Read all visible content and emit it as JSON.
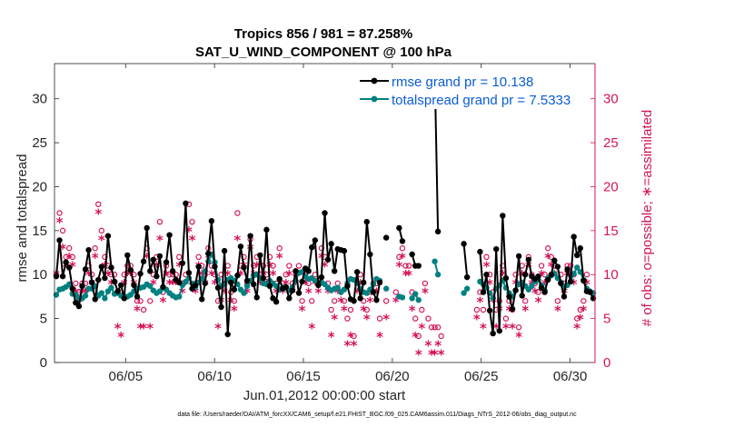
{
  "chart_data": {
    "type": "line",
    "title_line1": "Tropics 856 / 981 = 87.258%",
    "title_line2": "SAT_U_WIND_COMPONENT @ 100 hPa",
    "xlabel": "Jun.01,2012 00:00:00 start",
    "ylabel_left": "rmse and totalspread",
    "ylabel_right": "# of obs: o=possible; ∗=assimilated",
    "footnote": "data file: /Users/raeder/DAI/ATM_forcXX/CAM6_setup/f.e21.FHIST_BGC.f09_025.CAM6assim.011/Diags_NTrS_2012-06/obs_diag_output.nc",
    "xlim": [
      1.0,
      31.4
    ],
    "ylim_left": [
      0,
      34
    ],
    "ylim_right": [
      0,
      34
    ],
    "x_ticks": [
      {
        "value": 5,
        "label": "06/05"
      },
      {
        "value": 10,
        "label": "06/10"
      },
      {
        "value": 15,
        "label": "06/15"
      },
      {
        "value": 20,
        "label": "06/20"
      },
      {
        "value": 25,
        "label": "06/25"
      },
      {
        "value": 30,
        "label": "06/30"
      }
    ],
    "y_ticks_left": [
      "0",
      "5",
      "10",
      "15",
      "20",
      "25",
      "30"
    ],
    "y_ticks_right": [
      "0",
      "5",
      "10",
      "15",
      "20",
      "25",
      "30"
    ],
    "colors": {
      "rmse": "#000000",
      "spread": "#008080",
      "obs": "#d4145a",
      "legend_text": "#0a5cd6"
    },
    "series": [
      {
        "name": "rmse grand pr = 10.138",
        "values": [
          9.8,
          13.9,
          9.8,
          11.4,
          10.8,
          8.4,
          6.8,
          6.4,
          8.7,
          10.6,
          12.8,
          9.1,
          7.2,
          9.4,
          10.9,
          9.6,
          14.4,
          10.8,
          9.2,
          8.1,
          8.8,
          7.3,
          12.2,
          10.5,
          8.8,
          7.5,
          10.1,
          11.5,
          15.3,
          10.4,
          11.7,
          9.8,
          12.1,
          8.6,
          11.4,
          14.5,
          10.4,
          9.4,
          9.1,
          11.3,
          18.1,
          10.2,
          8.4,
          8.8,
          10.9,
          7.2,
          9.0,
          12.4,
          16.1,
          10.9,
          8.5,
          6.3,
          12.7,
          3.2,
          9.1,
          8.3,
          9.9,
          13.2,
          10.8,
          9.3,
          14.4,
          8.9,
          7.4,
          12.2,
          9.6,
          15.1,
          8.7,
          7.3,
          6.9,
          9.5,
          8.4,
          8.6,
          7.3,
          8.2,
          10.4,
          7.9,
          9.2,
          10.7,
          10.4,
          13.1,
          13.9,
          8.8,
          9.7,
          17.0,
          11.7,
          13.5,
          10.4,
          12.9,
          12.8,
          12.7,
          8.7,
          7.2,
          7.0,
          10.3,
          7.3,
          9.1,
          16.0,
          12.3,
          8.0,
          7.1,
          9.1,
          null,
          14.2,
          null,
          null,
          null,
          15.3,
          13.8,
          null,
          null,
          12.3,
          11.0,
          11.0,
          null,
          null,
          null,
          null,
          33.0,
          14.9,
          null,
          null,
          null,
          null,
          null,
          null,
          null,
          13.5,
          9.7,
          null,
          null,
          null,
          12.6,
          8.0,
          10.0,
          5.9,
          3.3,
          12.9,
          3.6,
          16.7,
          9.6,
          7.5,
          6.1,
          8.2,
          12.1,
          7.6,
          10.0,
          11.7,
          9.8,
          9.5,
          9.8,
          8.5,
          8.0,
          9.4,
          10.0,
          11.6,
          10.9,
          9.0,
          7.5,
          10.6,
          9.2,
          14.3,
          12.2,
          13.0,
          9.3,
          8.1,
          8.0,
          7.3
        ]
      },
      {
        "name": "totalspread grand pr = 7.5333",
        "values": [
          7.7,
          8.3,
          8.4,
          8.6,
          8.9,
          7.8,
          7.7,
          7.3,
          7.3,
          7.6,
          8.4,
          8.4,
          8.7,
          7.6,
          7.9,
          7.3,
          8.1,
          8.5,
          7.8,
          7.9,
          7.6,
          7.5,
          7.5,
          7.7,
          8.1,
          8.4,
          8.5,
          8.6,
          8.9,
          8.7,
          8.2,
          7.9,
          8.1,
          8.5,
          8.3,
          7.9,
          7.6,
          7.4,
          7.5,
          8.8,
          9.2,
          9.6,
          9.0,
          8.6,
          9.1,
          9.5,
          10.4,
          11.5,
          12.3,
          11.4,
          9.4,
          8.7,
          8.9,
          9.4,
          9.6,
          9.3,
          8.9,
          8.3,
          7.9,
          8.7,
          9.3,
          9.9,
          10.0,
          9.6,
          9.0,
          8.9,
          9.3,
          9.0,
          8.7,
          8.3,
          8.5,
          8.5,
          8.2,
          8.6,
          9.3,
          10.2,
          10.3,
          9.8,
          9.5,
          9.6,
          9.3,
          8.8,
          9.1,
          8.9,
          8.5,
          8.2,
          8.4,
          8.5,
          8.0,
          8.3,
          9.0,
          9.5,
          9.4,
          9.0,
          8.4,
          8.0,
          7.9,
          8.3,
          8.9,
          9.5,
          9.3,
          null,
          8.4,
          null,
          null,
          null,
          7.5,
          7.4,
          null,
          null,
          7.3,
          7.8,
          7.1,
          null,
          null,
          null,
          null,
          11.5,
          10.0,
          null,
          null,
          null,
          null,
          null,
          null,
          null,
          7.9,
          8.4,
          null,
          null,
          null,
          9.2,
          8.9,
          8.5,
          7.9,
          7.3,
          8.4,
          8.8,
          9.3,
          8.5,
          7.9,
          7.5,
          8.2,
          8.9,
          9.1,
          8.7,
          8.3,
          8.7,
          9.2,
          9.4,
          8.8,
          8.2,
          9.6,
          9.9,
          10.1,
          9.6,
          9.1,
          8.6,
          8.8,
          9.2,
          10.1,
          10.8,
          10.3,
          9.4,
          8.4,
          8.1,
          7.9
        ]
      },
      {
        "name": "possible obs",
        "values": [
          10,
          17,
          15,
          12,
          13,
          12,
          9,
          8,
          9,
          9,
          11,
          10,
          13,
          18,
          15,
          12,
          11,
          10,
          10,
          8,
          8,
          10,
          11,
          11,
          10,
          7,
          7,
          6,
          13,
          7,
          10,
          12,
          16,
          8,
          11,
          10,
          10,
          10,
          12,
          9,
          10,
          18,
          16,
          9,
          12,
          11,
          10,
          13,
          11,
          10,
          7,
          10,
          9,
          11,
          8,
          7,
          17,
          11,
          12,
          9,
          14,
          11,
          12,
          10,
          11,
          10,
          12,
          11,
          9,
          13,
          9,
          10,
          11,
          9,
          10,
          11,
          7,
          10,
          9,
          7,
          10,
          9,
          13,
          12,
          9,
          6,
          7,
          9,
          8,
          7,
          5,
          6,
          3,
          9,
          10,
          7,
          6,
          8,
          9,
          9,
          5,
          null,
          7,
          null,
          null,
          8,
          12,
          13,
          11,
          11,
          8,
          5,
          3,
          6,
          9,
          5,
          4,
          4,
          4,
          3,
          null,
          null,
          null,
          null,
          null,
          null,
          null,
          null,
          null,
          null,
          6,
          8,
          6,
          12,
          10,
          8,
          6,
          7,
          11,
          5,
          7,
          6,
          10,
          4,
          11,
          7,
          12,
          10,
          9,
          8,
          11,
          10,
          13,
          12,
          11,
          7,
          10,
          9,
          11,
          11,
          10,
          5,
          6,
          7,
          10
        ]
      },
      {
        "name": "assimilated obs",
        "values": [
          10,
          16,
          13,
          11,
          12,
          11,
          8,
          7,
          8,
          8,
          10,
          9,
          12,
          17,
          14,
          11,
          10,
          9,
          9,
          4,
          3,
          9,
          10,
          10,
          9,
          6,
          4,
          4,
          12,
          4,
          9,
          11,
          14,
          7,
          10,
          9,
          9,
          9,
          11,
          8,
          9,
          15,
          14,
          8,
          11,
          10,
          9,
          12,
          10,
          9,
          4,
          7,
          8,
          10,
          7,
          6,
          14,
          10,
          11,
          8,
          13,
          10,
          11,
          9,
          10,
          9,
          11,
          10,
          8,
          12,
          8,
          9,
          10,
          8,
          9,
          10,
          6,
          9,
          8,
          4,
          9,
          8,
          12,
          11,
          8,
          3,
          5,
          8,
          7,
          6,
          2,
          3,
          2,
          8,
          9,
          6,
          5,
          7,
          8,
          8,
          3,
          null,
          5,
          null,
          null,
          7,
          11,
          12,
          10,
          10,
          6,
          3,
          1,
          4,
          8,
          2,
          1,
          1,
          2,
          1,
          null,
          null,
          null,
          null,
          null,
          null,
          null,
          null,
          null,
          null,
          5,
          7,
          4,
          11,
          9,
          7,
          4,
          6,
          10,
          4,
          6,
          4,
          9,
          3,
          10,
          6,
          11,
          9,
          8,
          7,
          10,
          9,
          12,
          11,
          10,
          6,
          9,
          8,
          10,
          10,
          9,
          4,
          5,
          6,
          9
        ]
      }
    ],
    "legend": {
      "placement": "top-right",
      "entries": [
        "rmse grand pr = 10.138",
        "totalspread grand pr = 7.5333"
      ]
    }
  }
}
